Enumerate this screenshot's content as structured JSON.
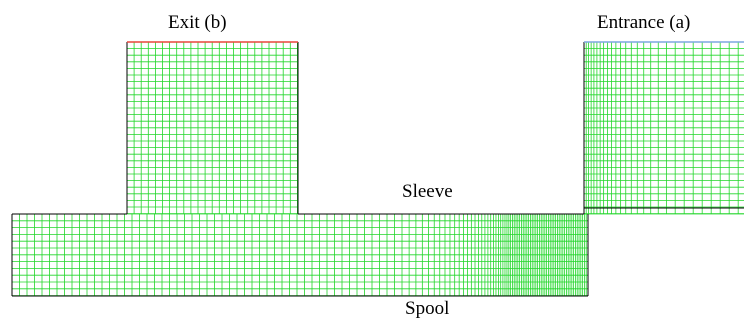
{
  "labels": {
    "exit": "Exit (b)",
    "entrance": "Entrance (a)",
    "sleeve": "Sleeve",
    "spool": "Spool"
  },
  "colors": {
    "mesh": "#22d62a",
    "outline": "#000000",
    "exit_boundary": "#e8463c",
    "entrance_boundary": "#7fa7e0",
    "background": "#ffffff"
  }
}
